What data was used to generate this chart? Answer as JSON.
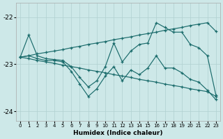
{
  "xlabel": "Humidex (Indice chaleur)",
  "x": [
    0,
    1,
    2,
    3,
    4,
    5,
    6,
    7,
    8,
    9,
    10,
    11,
    12,
    13,
    14,
    15,
    16,
    17,
    18,
    19,
    20,
    21,
    22,
    23
  ],
  "line_upper_straight": [
    -22.85,
    -22.82,
    -22.78,
    -22.75,
    -22.72,
    -22.69,
    -22.65,
    -22.62,
    -22.58,
    -22.55,
    -22.52,
    -22.48,
    -22.45,
    -22.42,
    -22.38,
    -22.35,
    -22.32,
    -22.28,
    -22.25,
    -22.22,
    -22.18,
    -22.15,
    -22.12,
    -22.3
  ],
  "line_lower_straight": [
    -22.85,
    -22.88,
    -22.92,
    -22.95,
    -22.98,
    -23.02,
    -23.05,
    -23.08,
    -23.12,
    -23.15,
    -23.18,
    -23.22,
    -23.25,
    -23.28,
    -23.32,
    -23.35,
    -23.38,
    -23.42,
    -23.45,
    -23.48,
    -23.52,
    -23.55,
    -23.58,
    -23.68
  ],
  "line_zigzag_upper": [
    -22.85,
    -22.38,
    -22.82,
    -22.88,
    -22.9,
    -22.92,
    -23.05,
    -23.28,
    -23.48,
    -23.35,
    -23.05,
    -22.55,
    -22.95,
    -22.72,
    -22.58,
    -22.55,
    -22.12,
    -22.22,
    -22.32,
    -22.32,
    -22.58,
    -22.65,
    -22.82,
    -23.65
  ],
  "line_zigzag_lower": [
    -22.85,
    -22.82,
    -22.88,
    -22.92,
    -22.92,
    -22.95,
    -23.15,
    -23.42,
    -23.68,
    -23.52,
    -23.25,
    -23.05,
    -23.35,
    -23.12,
    -23.22,
    -23.08,
    -22.82,
    -23.08,
    -23.08,
    -23.18,
    -23.32,
    -23.38,
    -23.55,
    -23.75
  ],
  "bg_color": "#cde8e8",
  "grid_color": "#b0d0d0",
  "line_color": "#1a6b6b",
  "ylim": [
    -24.2,
    -21.7
  ],
  "xlim": [
    -0.5,
    23.5
  ],
  "yticks": [
    -24,
    -23,
    -22
  ],
  "xticks": [
    0,
    1,
    2,
    3,
    4,
    5,
    6,
    7,
    8,
    9,
    10,
    11,
    12,
    13,
    14,
    15,
    16,
    17,
    18,
    19,
    20,
    21,
    22,
    23
  ]
}
